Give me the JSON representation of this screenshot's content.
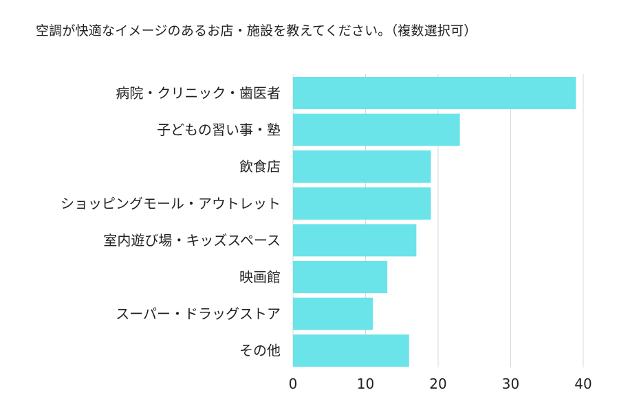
{
  "chart_data": {
    "type": "bar",
    "orientation": "horizontal",
    "title": "空調が快適なイメージのあるお店・施設を教えてください。（複数選択可）",
    "categories": [
      "病院・クリニック・歯医者",
      "子どもの習い事・塾",
      "飲食店",
      "ショッピングモール・アウトレット",
      "室内遊び場・キッズスペース",
      "映画館",
      "スーパー・ドラッグストア",
      "その他"
    ],
    "values": [
      39,
      23,
      19,
      19,
      17,
      13,
      11,
      16
    ],
    "xlim": [
      0,
      40
    ],
    "xticks": [
      "0",
      "10",
      "20",
      "30",
      "40"
    ],
    "xlabel": "",
    "ylabel": "",
    "grid": true,
    "bar_color": "#6ae3e9",
    "grid_color": "#d9d9d9"
  }
}
